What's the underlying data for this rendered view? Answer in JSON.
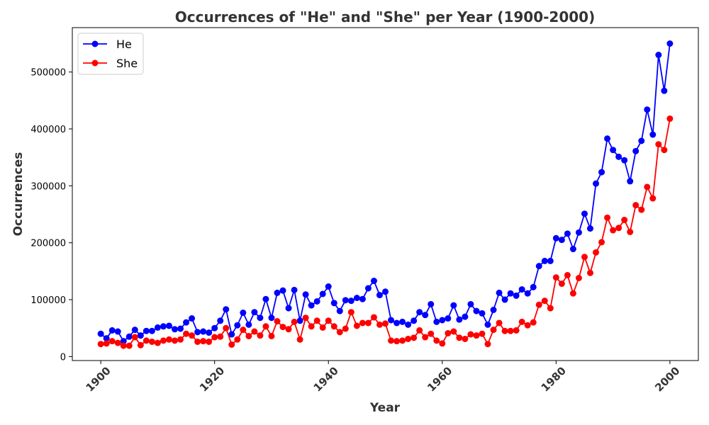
{
  "chart_data": {
    "type": "line",
    "title": "Occurrences of \"He\" and \"She\" per Year (1900-2000)",
    "xlabel": "Year",
    "ylabel": "Occurrences",
    "xlim": [
      1895,
      2005
    ],
    "ylim": [
      -7000,
      578000
    ],
    "x_ticks": [
      1900,
      1920,
      1940,
      1960,
      1980,
      2000
    ],
    "y_ticks": [
      0,
      100000,
      200000,
      300000,
      400000,
      500000
    ],
    "grid": false,
    "legend_position": "top-left",
    "x": [
      1900,
      1901,
      1902,
      1903,
      1904,
      1905,
      1906,
      1907,
      1908,
      1909,
      1910,
      1911,
      1912,
      1913,
      1914,
      1915,
      1916,
      1917,
      1918,
      1919,
      1920,
      1921,
      1922,
      1923,
      1924,
      1925,
      1926,
      1927,
      1928,
      1929,
      1930,
      1931,
      1932,
      1933,
      1934,
      1935,
      1936,
      1937,
      1938,
      1939,
      1940,
      1941,
      1942,
      1943,
      1944,
      1945,
      1946,
      1947,
      1948,
      1949,
      1950,
      1951,
      1952,
      1953,
      1954,
      1955,
      1956,
      1957,
      1958,
      1959,
      1960,
      1961,
      1962,
      1963,
      1964,
      1965,
      1966,
      1967,
      1968,
      1969,
      1970,
      1971,
      1972,
      1973,
      1974,
      1975,
      1976,
      1977,
      1978,
      1979,
      1980,
      1981,
      1982,
      1983,
      1984,
      1985,
      1986,
      1987,
      1988,
      1989,
      1990,
      1991,
      1992,
      1993,
      1994,
      1995,
      1996,
      1997,
      1998,
      1999,
      2000
    ],
    "series": [
      {
        "name": "He",
        "color": "#0000ff",
        "values": [
          40000,
          32000,
          46000,
          44000,
          27000,
          35000,
          47000,
          37000,
          45000,
          45000,
          51000,
          53000,
          54000,
          48000,
          49000,
          60000,
          67000,
          43000,
          44000,
          42000,
          50000,
          63000,
          83000,
          39000,
          55000,
          77000,
          56000,
          78000,
          68000,
          101000,
          68000,
          112000,
          116000,
          85000,
          117000,
          63000,
          109000,
          90000,
          97000,
          110000,
          123000,
          94000,
          80000,
          99000,
          98000,
          103000,
          101000,
          120000,
          133000,
          108000,
          114000,
          64000,
          59000,
          61000,
          56000,
          63000,
          78000,
          73000,
          92000,
          61000,
          64000,
          67000,
          90000,
          65000,
          70000,
          92000,
          80000,
          76000,
          56000,
          82000,
          112000,
          100000,
          111000,
          107000,
          118000,
          111000,
          122000,
          159000,
          168000,
          168000,
          208000,
          205000,
          216000,
          189000,
          218000,
          251000,
          225000,
          304000,
          324000,
          383000,
          363000,
          351000,
          345000,
          308000,
          361000,
          379000,
          434000,
          390000,
          530000,
          467000,
          550000
        ]
      },
      {
        "name": "She",
        "color": "#ff0000",
        "values": [
          22000,
          23000,
          27000,
          24000,
          19000,
          19000,
          34000,
          20000,
          28000,
          26000,
          24000,
          28000,
          30000,
          28000,
          30000,
          40000,
          37000,
          26000,
          27000,
          26000,
          34000,
          35000,
          50000,
          21000,
          30000,
          47000,
          36000,
          44000,
          37000,
          53000,
          36000,
          62000,
          52000,
          48000,
          61000,
          30000,
          68000,
          53000,
          63000,
          51000,
          63000,
          53000,
          43000,
          49000,
          78000,
          54000,
          59000,
          59000,
          69000,
          56000,
          58000,
          28000,
          27000,
          28000,
          31000,
          33000,
          46000,
          34000,
          40000,
          28000,
          23000,
          41000,
          44000,
          33000,
          31000,
          39000,
          37000,
          40000,
          22000,
          47000,
          59000,
          45000,
          45000,
          46000,
          61000,
          55000,
          60000,
          91000,
          98000,
          85000,
          139000,
          128000,
          143000,
          111000,
          138000,
          175000,
          147000,
          183000,
          201000,
          244000,
          222000,
          226000,
          240000,
          219000,
          266000,
          258000,
          298000,
          278000,
          373000,
          363000,
          418000
        ]
      }
    ]
  }
}
